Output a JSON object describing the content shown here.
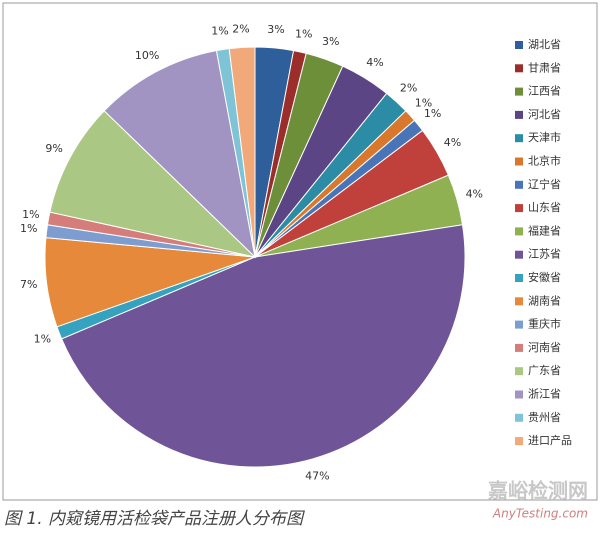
{
  "chart_data": {
    "type": "pie",
    "categories": [
      "湖北省",
      "甘肃省",
      "江西省",
      "河北省",
      "天津市",
      "北京市",
      "辽宁省",
      "山东省",
      "福建省",
      "江苏省",
      "安徽省",
      "湖南省",
      "重庆市",
      "河南省",
      "广东省",
      "浙江省",
      "贵州省",
      "进口产品"
    ],
    "values": [
      3,
      1,
      3,
      4,
      2,
      1,
      1,
      4,
      4,
      47,
      1,
      7,
      1,
      1,
      9,
      10,
      1,
      2
    ],
    "value_labels": [
      "3%",
      "1%",
      "3%",
      "4%",
      "2%",
      "1%",
      "1%",
      "4%",
      "4%",
      "47%",
      "1%",
      "7%",
      "1%",
      "1%",
      "9%",
      "10%",
      "1%",
      "2%"
    ],
    "colors": [
      "#2e5f9a",
      "#9b2d2b",
      "#6e8f3a",
      "#5c4585",
      "#2c8ca6",
      "#d9782d",
      "#4a74b8",
      "#c0403c",
      "#8fb151",
      "#6f5597",
      "#35a2bf",
      "#e7893a",
      "#7d9dd1",
      "#d57d7a",
      "#aac883",
      "#a294c2",
      "#7fc3d6",
      "#f2a97a"
    ],
    "legend": "right",
    "caption": "图 1. 内窥镜用活检袋产品注册人分布图",
    "watermark": "嘉峪检测网",
    "watermark_url": "AnyTesting.com"
  }
}
